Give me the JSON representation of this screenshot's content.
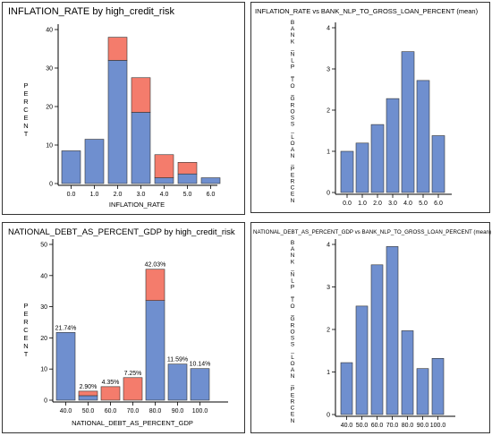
{
  "chart_data": [
    {
      "type": "bar",
      "title": "INFLATION_RATE  by  high_credit_risk",
      "xlabel": "INFLATION_RATE",
      "ylabel": "PERCENT",
      "stacked": true,
      "categories": [
        "0.0",
        "1.0",
        "2.0",
        "3.0",
        "4.0",
        "5.0",
        "6.0"
      ],
      "series": [
        {
          "color": "#6f8fcf",
          "values": [
            8.5,
            11.5,
            32,
            18.5,
            1.5,
            2.5,
            1.5
          ]
        },
        {
          "color": "#f47c6c",
          "values": [
            0,
            0,
            6,
            9,
            6,
            3,
            0
          ]
        }
      ],
      "ylim": [
        0,
        40
      ],
      "yticks": [
        "0",
        "10",
        "20",
        "30",
        "40"
      ]
    },
    {
      "type": "bar",
      "title": "INFLATION_RATE vs BANK_NLP_TO_GROSS_LOAN_PERCENT (mean)",
      "ylabel": "BANK_NLP_TO_GROSS_LOAN_PERCEN",
      "categories": [
        "0.0",
        "1.0",
        "2.0",
        "3.0",
        "4.0",
        "5.0",
        "6.0"
      ],
      "values": [
        1.0,
        1.2,
        1.65,
        2.28,
        3.42,
        2.72,
        1.38
      ],
      "ylim": [
        0,
        4
      ],
      "yticks": [
        "0",
        "1",
        "2",
        "3",
        "4"
      ],
      "color": "#6f8fcf"
    },
    {
      "type": "bar",
      "title": "NATIONAL_DEBT_AS_PERCENT_GDP  by  high_credit_risk",
      "xlabel": "NATIONAL_DEBT_AS_PERCENT_GDP",
      "ylabel": "PERCENT",
      "stacked": true,
      "categories": [
        "40.0",
        "50.0",
        "60.0",
        "70.0",
        "80.0",
        "90.0",
        "100.0"
      ],
      "series": [
        {
          "color": "#6f8fcf",
          "values": [
            21.74,
            1.45,
            0,
            0,
            32,
            11.59,
            10.14
          ]
        },
        {
          "color": "#f47c6c",
          "values": [
            0,
            1.45,
            4.35,
            7.25,
            10.03,
            0,
            0
          ]
        }
      ],
      "data_labels": [
        "21.74%",
        "2.90%",
        "4.35%",
        "7.25%",
        "42.03%",
        "11.59%",
        "10.14%"
      ],
      "ylim": [
        0,
        50
      ],
      "yticks": [
        "0",
        "10",
        "20",
        "30",
        "40",
        "50"
      ]
    },
    {
      "type": "bar",
      "title": "NATIONAL_DEBT_AS_PERCENT_GDP vs BANK_NLP_TO_GROSS_LOAN_PERCENT (mean)",
      "ylabel": "BANK_NLP_TO_GROSS_LOAN_PERCEN",
      "categories": [
        "40.0",
        "50.0",
        "60.0",
        "70.0",
        "80.0",
        "90.0",
        "100.0"
      ],
      "values": [
        1.22,
        2.55,
        3.52,
        3.95,
        1.97,
        1.08,
        1.32
      ],
      "ylim": [
        0,
        4
      ],
      "yticks": [
        "0",
        "1",
        "2",
        "3",
        "4"
      ],
      "color": "#6f8fcf"
    }
  ]
}
